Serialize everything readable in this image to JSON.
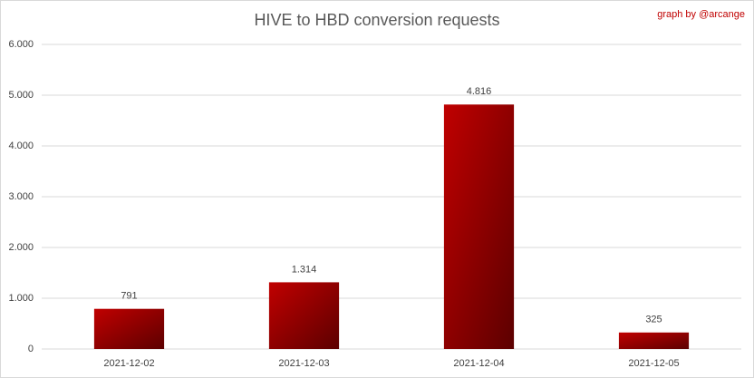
{
  "chart_data": {
    "type": "bar",
    "title": "HIVE to HBD conversion requests",
    "annotation": "graph by @arcange",
    "categories": [
      "2021-12-02",
      "2021-12-03",
      "2021-12-04",
      "2021-12-05"
    ],
    "values": [
      791,
      1314,
      4816,
      325
    ],
    "value_labels": [
      "791",
      "1.314",
      "4.816",
      "325"
    ],
    "color": "#c00000",
    "ylim": [
      0,
      6000
    ],
    "yticks": [
      0,
      {
        "value": 1000,
        "label": "1.000"
      },
      {
        "value": 2000,
        "label": "2.000"
      },
      {
        "value": 3000,
        "label": "3.000"
      },
      {
        "value": 4000,
        "label": "4.000"
      },
      {
        "value": 5000,
        "label": "5.000"
      },
      {
        "value": 6000,
        "label": "6.000"
      }
    ],
    "grid": true
  }
}
